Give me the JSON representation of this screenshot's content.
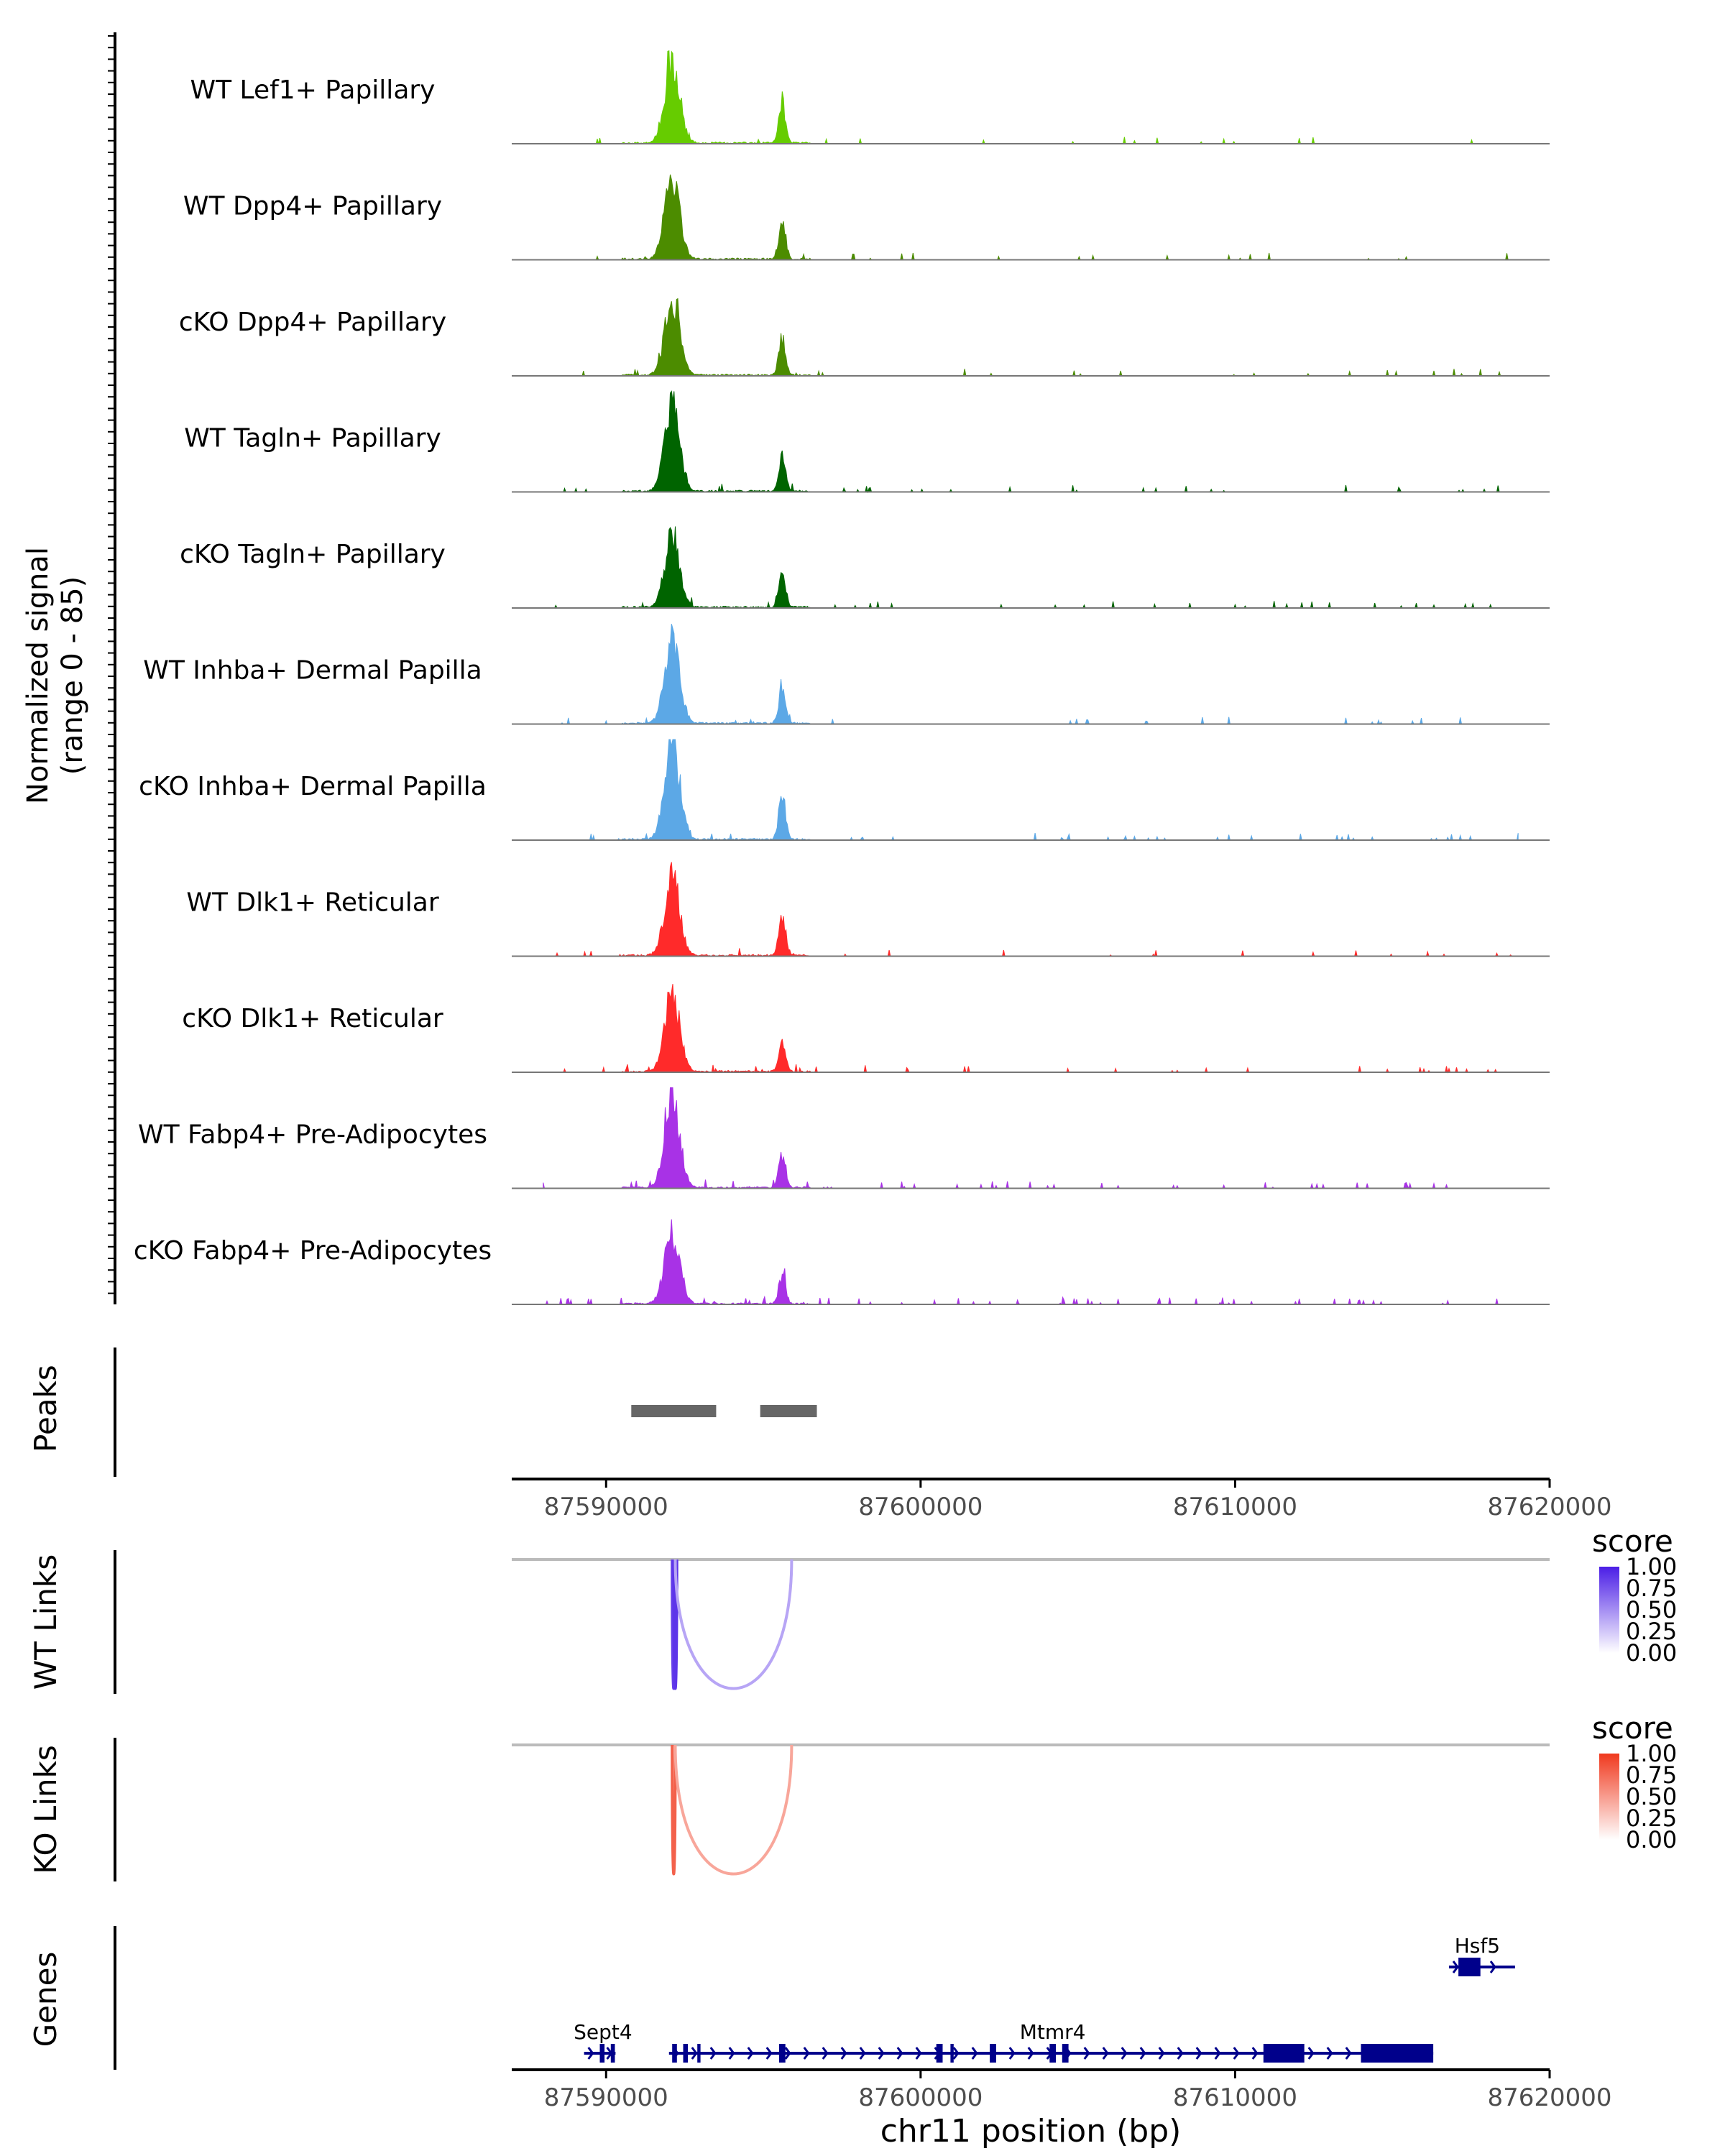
{
  "chart_data": {
    "type": "area",
    "title": "",
    "y_axis_label": "Normalized signal",
    "y_axis_range_label": "(range 0 - 85)",
    "y_range": [
      0,
      85
    ],
    "x_axis_label": "chr11 position (bp)",
    "x_range": [
      87587000,
      87620000
    ],
    "x_ticks": [
      87590000,
      87600000,
      87610000,
      87620000
    ],
    "tracks": [
      {
        "name": "WT Lef1+ Papillary",
        "color": "#66CC00",
        "peaks": [
          [
            87592100,
            72
          ],
          [
            87595600,
            35
          ]
        ],
        "noise": 0.015
      },
      {
        "name": "WT Dpp4+ Papillary",
        "color": "#4C8C00",
        "peaks": [
          [
            87592100,
            68
          ],
          [
            87595600,
            33
          ]
        ],
        "noise": 0.025
      },
      {
        "name": "cKO Dpp4+ Papillary",
        "color": "#4C8C00",
        "peaks": [
          [
            87592100,
            66
          ],
          [
            87595600,
            30
          ]
        ],
        "noise": 0.03
      },
      {
        "name": "WT Tagln+ Papillary",
        "color": "#006400",
        "peaks": [
          [
            87592100,
            74
          ],
          [
            87595600,
            30
          ]
        ],
        "noise": 0.04
      },
      {
        "name": "cKO Tagln+ Papillary",
        "color": "#006400",
        "peaks": [
          [
            87592100,
            60
          ],
          [
            87595600,
            32
          ]
        ],
        "noise": 0.05
      },
      {
        "name": "WT Inhba+ Dermal Papilla",
        "color": "#5CA8E6",
        "peaks": [
          [
            87592100,
            72
          ],
          [
            87595600,
            32
          ]
        ],
        "noise": 0.03
      },
      {
        "name": "cKO Inhba+ Dermal Papilla",
        "color": "#5CA8E6",
        "peaks": [
          [
            87592100,
            85
          ],
          [
            87595600,
            38
          ]
        ],
        "noise": 0.06
      },
      {
        "name": "WT Dlk1+ Reticular",
        "color": "#FF2A2A",
        "peaks": [
          [
            87592100,
            66
          ],
          [
            87595600,
            33
          ]
        ],
        "noise": 0.03
      },
      {
        "name": "cKO Dlk1+ Reticular",
        "color": "#FF2A2A",
        "peaks": [
          [
            87592100,
            66
          ],
          [
            87595600,
            24
          ]
        ],
        "noise": 0.04
      },
      {
        "name": "WT Fabp4+ Pre-Adipocytes",
        "color": "#A832E6",
        "peaks": [
          [
            87592100,
            80
          ],
          [
            87595600,
            28
          ]
        ],
        "noise": 0.05
      },
      {
        "name": "cKO Fabp4+ Pre-Adipocytes",
        "color": "#A832E6",
        "peaks": [
          [
            87592100,
            60
          ],
          [
            87595600,
            25
          ]
        ],
        "noise": 0.07
      }
    ],
    "peaks_track": {
      "label": "Peaks",
      "regions": [
        [
          87590800,
          87593500
        ],
        [
          87594900,
          87596700
        ]
      ],
      "color": "#666666"
    },
    "link_tracks": [
      {
        "label": "WT Links",
        "legend_title": "score",
        "color_high": "#4B1EE6",
        "color_low": "#FFFFFF",
        "legend_ticks": [
          "1.00",
          "0.75",
          "0.50",
          "0.25",
          "0.00"
        ],
        "links": [
          {
            "start": 87592100,
            "end": 87592200,
            "score": 0.85
          },
          {
            "start": 87592150,
            "end": 87592250,
            "score": 0.9
          },
          {
            "start": 87592200,
            "end": 87595900,
            "score": 0.4
          }
        ]
      },
      {
        "label": "KO Links",
        "legend_title": "score",
        "color_high": "#F0391E",
        "color_low": "#FFFFFF",
        "legend_ticks": [
          "1.00",
          "0.75",
          "0.50",
          "0.25",
          "0.00"
        ],
        "links": [
          {
            "start": 87592100,
            "end": 87592200,
            "score": 0.8
          },
          {
            "start": 87592200,
            "end": 87595900,
            "score": 0.45
          }
        ]
      }
    ],
    "genes_track": {
      "label": "Genes",
      "color": "#00008B",
      "genes": [
        {
          "name": "Sept4",
          "start": 87589300,
          "end": 87590300,
          "row": 1,
          "exons": [
            [
              87589800,
              87589950
            ],
            [
              87590150,
              87590280
            ]
          ]
        },
        {
          "name": "Mtmr4",
          "start": 87592000,
          "end": 87616300,
          "row": 1,
          "exons": [
            [
              87592100,
              87592250
            ],
            [
              87592450,
              87592600
            ],
            [
              87592900,
              87593000
            ],
            [
              87595500,
              87595700
            ],
            [
              87600500,
              87600700
            ],
            [
              87600950,
              87601050
            ],
            [
              87602200,
              87602400
            ],
            [
              87604100,
              87604300
            ],
            [
              87604500,
              87604700
            ],
            [
              87610900,
              87612200
            ],
            [
              87614000,
              87616300
            ]
          ]
        },
        {
          "name": "Hsf5",
          "start": 87616800,
          "end": 87618900,
          "row": 0,
          "exons": [
            [
              87617100,
              87617800
            ]
          ]
        }
      ]
    }
  }
}
